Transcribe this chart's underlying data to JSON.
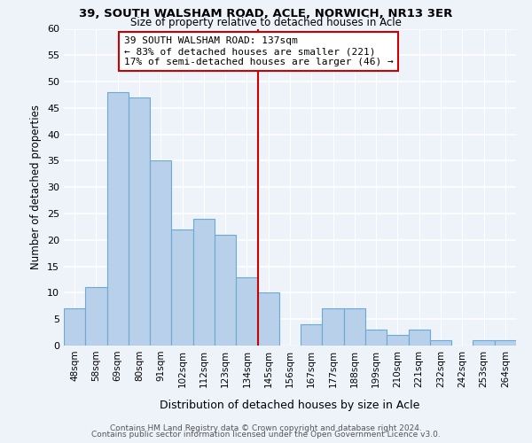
{
  "title1": "39, SOUTH WALSHAM ROAD, ACLE, NORWICH, NR13 3ER",
  "title2": "Size of property relative to detached houses in Acle",
  "xlabel": "Distribution of detached houses by size in Acle",
  "ylabel": "Number of detached properties",
  "bar_labels": [
    "48sqm",
    "58sqm",
    "69sqm",
    "80sqm",
    "91sqm",
    "102sqm",
    "112sqm",
    "123sqm",
    "134sqm",
    "145sqm",
    "156sqm",
    "167sqm",
    "177sqm",
    "188sqm",
    "199sqm",
    "210sqm",
    "221sqm",
    "232sqm",
    "242sqm",
    "253sqm",
    "264sqm"
  ],
  "bar_values": [
    7,
    11,
    48,
    47,
    35,
    22,
    24,
    21,
    13,
    10,
    0,
    4,
    7,
    7,
    3,
    2,
    3,
    1,
    0,
    1,
    1
  ],
  "bar_color": "#b8d0ea",
  "bar_edge_color": "#6aaad4",
  "property_line_x": 8.5,
  "property_line_color": "#cc0000",
  "annotation_text": "39 SOUTH WALSHAM ROAD: 137sqm\n← 83% of detached houses are smaller (221)\n17% of semi-detached houses are larger (46) →",
  "annotation_box_color": "#ffffff",
  "annotation_box_edge_color": "#cc0000",
  "ylim": [
    0,
    60
  ],
  "yticks": [
    0,
    5,
    10,
    15,
    20,
    25,
    30,
    35,
    40,
    45,
    50,
    55,
    60
  ],
  "footer1": "Contains HM Land Registry data © Crown copyright and database right 2024.",
  "footer2": "Contains public sector information licensed under the Open Government Licence v3.0.",
  "bg_color": "#eef2f9",
  "grid_color": "#ffffff"
}
